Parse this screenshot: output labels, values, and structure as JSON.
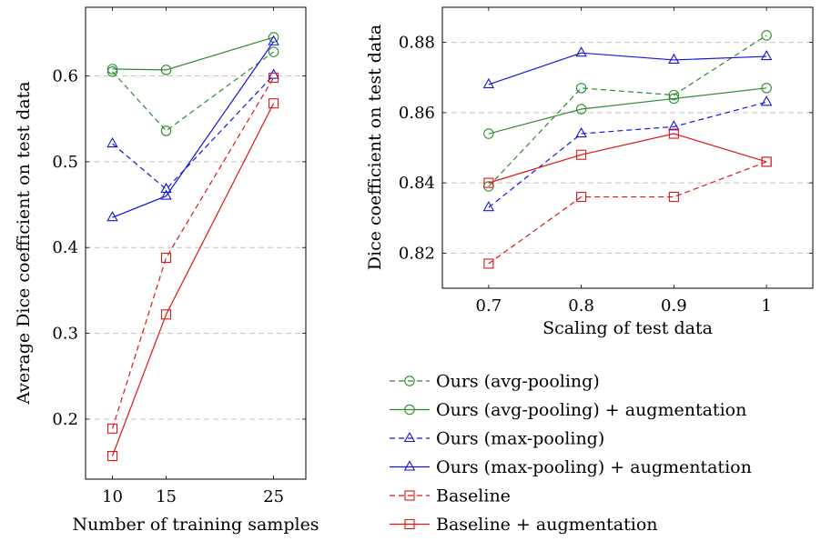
{
  "chart_data": [
    {
      "type": "line",
      "xlabel": "Number of training samples",
      "ylabel": "Average Dice coefficient on test data",
      "x": [
        10,
        15,
        25
      ],
      "xticks": [
        "10",
        "15",
        "25"
      ],
      "yticks": [
        "0.2",
        "0.3",
        "0.4",
        "0.5",
        "0.6"
      ],
      "xlim": [
        7.5,
        28
      ],
      "ylim": [
        0.13,
        0.68
      ],
      "grid": "horizontal dashed",
      "series": [
        {
          "name": "Ours (avg-pooling)",
          "color": "#2e8b2e",
          "dash": true,
          "marker": "circle",
          "values": [
            0.605,
            0.536,
            0.628
          ]
        },
        {
          "name": "Ours (avg-pooling) + augmentation",
          "color": "#2e8b2e",
          "dash": false,
          "marker": "circle",
          "values": [
            0.608,
            0.607,
            0.645
          ]
        },
        {
          "name": "Ours (max-pooling)",
          "color": "#1515e0",
          "dash": true,
          "marker": "triangle",
          "values": [
            0.521,
            0.468,
            0.601
          ]
        },
        {
          "name": "Ours (max-pooling) + augmentation",
          "color": "#1515e0",
          "dash": false,
          "marker": "triangle",
          "values": [
            0.435,
            0.46,
            0.64
          ]
        },
        {
          "name": "Baseline",
          "color": "#e01515",
          "dash": true,
          "marker": "square",
          "values": [
            0.189,
            0.388,
            0.598
          ]
        },
        {
          "name": "Baseline + augmentation",
          "color": "#e01515",
          "dash": false,
          "marker": "square",
          "values": [
            0.157,
            0.322,
            0.568
          ]
        }
      ]
    },
    {
      "type": "line",
      "xlabel": "Scaling of test data",
      "ylabel": "Dice coefficient on test data",
      "x": [
        0.7,
        0.8,
        0.9,
        1.0
      ],
      "xticks": [
        "0.7",
        "0.8",
        "0.9",
        "1"
      ],
      "yticks": [
        "0.82",
        "0.84",
        "0.86",
        "0.88"
      ],
      "xlim": [
        0.65,
        1.05
      ],
      "ylim": [
        0.81,
        0.89
      ],
      "grid": "horizontal dashed",
      "series": [
        {
          "name": "Ours (avg-pooling)",
          "color": "#2e8b2e",
          "dash": true,
          "marker": "circle",
          "values": [
            0.839,
            0.867,
            0.865,
            0.882
          ]
        },
        {
          "name": "Ours (avg-pooling) + augmentation",
          "color": "#2e8b2e",
          "dash": false,
          "marker": "circle",
          "values": [
            0.854,
            0.861,
            0.864,
            0.867
          ]
        },
        {
          "name": "Ours (max-pooling)",
          "color": "#1515e0",
          "dash": true,
          "marker": "triangle",
          "values": [
            0.833,
            0.854,
            0.856,
            0.863
          ]
        },
        {
          "name": "Ours (max-pooling) + augmentation",
          "color": "#1515e0",
          "dash": false,
          "marker": "triangle",
          "values": [
            0.868,
            0.877,
            0.875,
            0.876
          ]
        },
        {
          "name": "Baseline",
          "color": "#e01515",
          "dash": true,
          "marker": "square",
          "values": [
            0.817,
            0.836,
            0.836,
            0.846
          ]
        },
        {
          "name": "Baseline + augmentation",
          "color": "#e01515",
          "dash": false,
          "marker": "square",
          "values": [
            0.84,
            0.848,
            0.854,
            0.846
          ]
        }
      ]
    }
  ],
  "legend": {
    "placement": "bottom-right",
    "entries": [
      {
        "label": "Ours (avg-pooling)",
        "color": "#2e8b2e",
        "dash": true,
        "marker": "circle"
      },
      {
        "label": "Ours (avg-pooling) + augmentation",
        "color": "#2e8b2e",
        "dash": false,
        "marker": "circle"
      },
      {
        "label": "Ours (max-pooling)",
        "color": "#1515e0",
        "dash": true,
        "marker": "triangle"
      },
      {
        "label": "Ours (max-pooling) + augmentation",
        "color": "#1515e0",
        "dash": false,
        "marker": "triangle"
      },
      {
        "label": "Baseline",
        "color": "#e01515",
        "dash": true,
        "marker": "square"
      },
      {
        "label": "Baseline + augmentation",
        "color": "#e01515",
        "dash": false,
        "marker": "square"
      }
    ]
  }
}
